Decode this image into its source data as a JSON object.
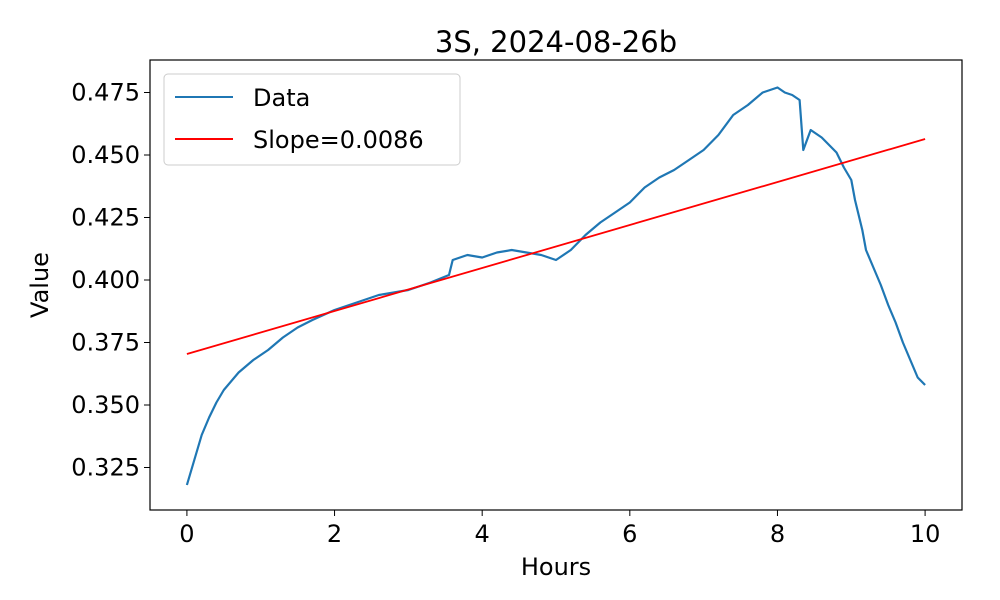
{
  "chart_data": {
    "type": "line",
    "title": "3S, 2024-08-26b",
    "xlabel": "Hours",
    "ylabel": "Value",
    "xlim": [
      -0.5,
      10.5
    ],
    "ylim": [
      0.308,
      0.488
    ],
    "xticks": [
      0,
      2,
      4,
      6,
      8,
      10
    ],
    "xtick_labels": [
      "0",
      "2",
      "4",
      "6",
      "8",
      "10"
    ],
    "yticks": [
      0.325,
      0.35,
      0.375,
      0.4,
      0.425,
      0.45,
      0.475
    ],
    "ytick_labels": [
      "0.325",
      "0.350",
      "0.375",
      "0.400",
      "0.425",
      "0.450",
      "0.475"
    ],
    "grid": false,
    "legend_position": "upper-left",
    "series": [
      {
        "name": "Data",
        "color": "#1f77b4",
        "x": [
          0,
          0.1,
          0.2,
          0.3,
          0.4,
          0.5,
          0.7,
          0.9,
          1.1,
          1.3,
          1.5,
          1.7,
          2.0,
          2.3,
          2.6,
          3.0,
          3.3,
          3.55,
          3.6,
          3.8,
          4.0,
          4.2,
          4.4,
          4.6,
          4.8,
          5.0,
          5.2,
          5.4,
          5.6,
          5.8,
          6.0,
          6.2,
          6.4,
          6.6,
          6.8,
          7.0,
          7.2,
          7.4,
          7.6,
          7.8,
          7.9,
          8.0,
          8.1,
          8.2,
          8.3,
          8.35,
          8.45,
          8.6,
          8.8,
          8.9,
          9.0,
          9.05,
          9.15,
          9.2,
          9.3,
          9.4,
          9.5,
          9.6,
          9.7,
          9.8,
          9.9,
          10.0
        ],
        "y": [
          0.318,
          0.328,
          0.338,
          0.345,
          0.351,
          0.356,
          0.363,
          0.368,
          0.372,
          0.377,
          0.381,
          0.384,
          0.388,
          0.391,
          0.394,
          0.396,
          0.399,
          0.402,
          0.408,
          0.41,
          0.409,
          0.411,
          0.412,
          0.411,
          0.41,
          0.408,
          0.412,
          0.418,
          0.423,
          0.427,
          0.431,
          0.437,
          0.441,
          0.444,
          0.448,
          0.452,
          0.458,
          0.466,
          0.47,
          0.475,
          0.476,
          0.477,
          0.475,
          0.474,
          0.472,
          0.452,
          0.46,
          0.457,
          0.451,
          0.445,
          0.44,
          0.432,
          0.42,
          0.412,
          0.405,
          0.398,
          0.39,
          0.383,
          0.375,
          0.368,
          0.361,
          0.358
        ]
      },
      {
        "name": "Slope=0.0086",
        "color": "#ff0000",
        "x": [
          0,
          10
        ],
        "y": [
          0.3704,
          0.4564
        ]
      }
    ]
  }
}
